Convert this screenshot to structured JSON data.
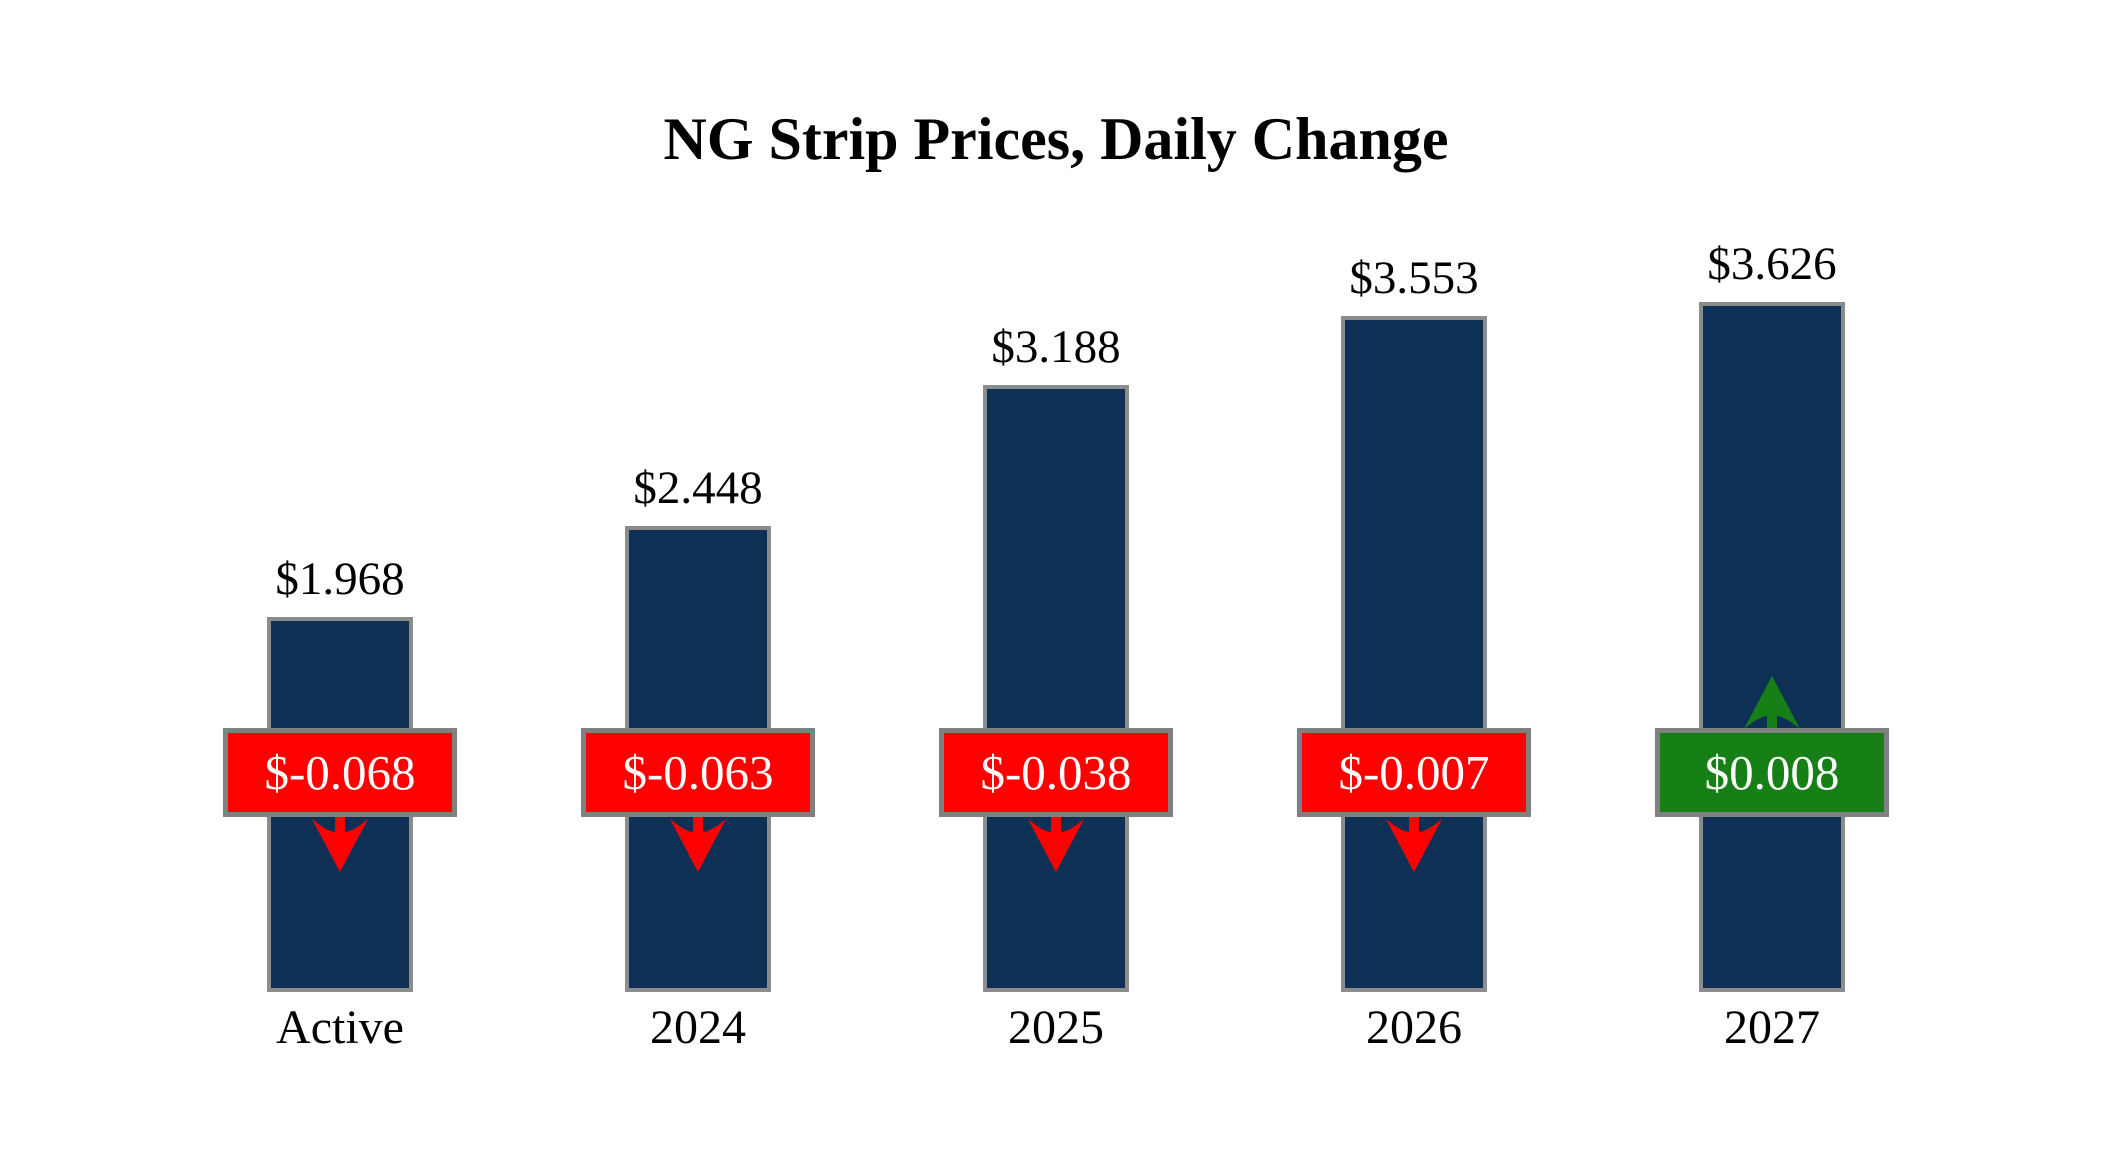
{
  "chart_data": {
    "type": "bar",
    "title": "NG Strip Prices, Daily Change",
    "categories": [
      "Active",
      "2024",
      "2025",
      "2026",
      "2027"
    ],
    "values": [
      1.968,
      2.448,
      3.188,
      3.553,
      3.626
    ],
    "value_labels": [
      "$1.968",
      "$2.448",
      "$3.188",
      "$3.553",
      "$3.626"
    ],
    "daily_changes": [
      -0.068,
      -0.063,
      -0.038,
      -0.007,
      0.008
    ],
    "change_labels": [
      "$-0.068",
      "$-0.063",
      "$-0.038",
      "$-0.007",
      "$0.008"
    ],
    "change_directions": [
      "down",
      "down",
      "down",
      "down",
      "up"
    ],
    "xlabel": "",
    "ylabel": "",
    "ylim": [
      0,
      4.2
    ],
    "grid": false,
    "legend": false,
    "colors": {
      "bar_fill": "#0E3055",
      "bar_border": "#8C8C8C",
      "negative_badge": "#FF0000",
      "positive_badge": "#168016",
      "badge_border": "#808080",
      "badge_text": "#FFFFFF",
      "title_text": "#000000",
      "label_text": "#000000"
    }
  }
}
